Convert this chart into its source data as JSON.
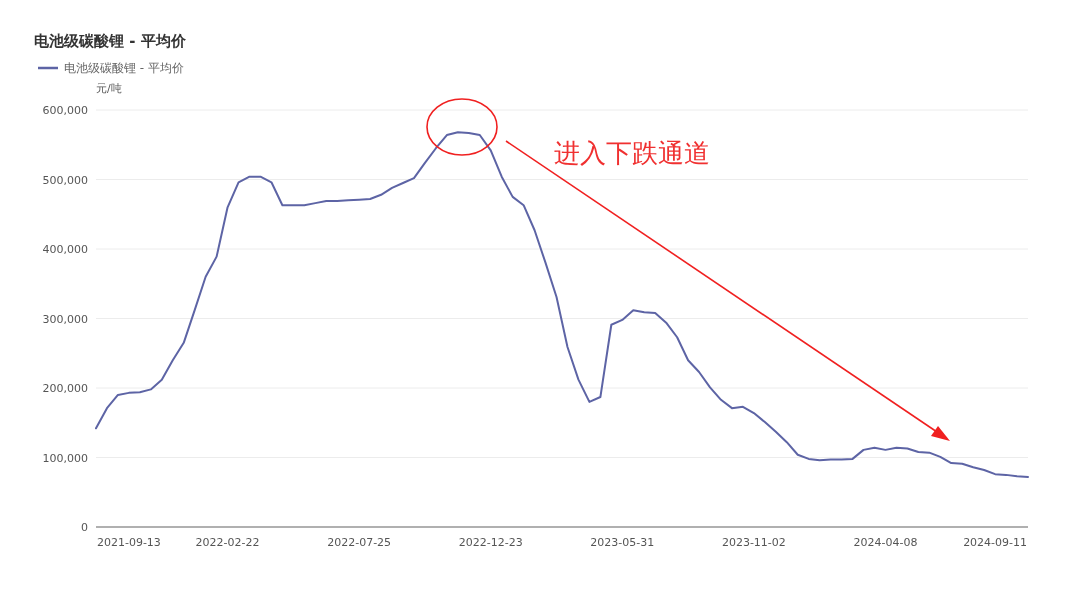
{
  "chart_data": {
    "type": "line",
    "title": "电池级碳酸锂 - 平均价",
    "ylabel": "元/吨",
    "legend": "top left",
    "grid": "y",
    "categories": [
      null,
      null,
      null,
      "2021-09-13",
      null,
      null,
      null,
      null,
      null,
      null,
      null,
      null,
      "2022-02-22",
      null,
      null,
      null,
      null,
      null,
      null,
      null,
      null,
      null,
      null,
      null,
      "2022-07-25",
      null,
      null,
      null,
      null,
      null,
      null,
      null,
      null,
      null,
      null,
      null,
      "2022-12-23",
      null,
      null,
      null,
      null,
      null,
      null,
      null,
      null,
      null,
      null,
      null,
      "2023-05-31",
      null,
      null,
      null,
      null,
      null,
      null,
      null,
      null,
      null,
      null,
      null,
      "2023-11-02",
      null,
      null,
      null,
      null,
      null,
      null,
      null,
      null,
      null,
      null,
      null,
      "2024-04-08",
      null,
      null,
      null,
      null,
      null,
      null,
      null,
      null,
      null,
      "2024-09-11",
      null,
      null,
      null
    ],
    "series": [
      {
        "name": "电池级碳酸锂 - 平均价",
        "color": "#5d64a5",
        "values": [
          142000,
          171000,
          190000,
          193000,
          194000,
          198000,
          212000,
          240000,
          265000,
          312000,
          360000,
          389000,
          460000,
          496000,
          504000,
          504000,
          496000,
          463000,
          463000,
          463000,
          466000,
          469000,
          469000,
          470000,
          471000,
          472000,
          478000,
          488000,
          495000,
          502000,
          524000,
          545000,
          564000,
          568000,
          567000,
          564000,
          542000,
          504000,
          475000,
          463000,
          427000,
          380000,
          331000,
          259000,
          212000,
          180000,
          187000,
          291000,
          298000,
          312000,
          309000,
          308000,
          294000,
          273000,
          240000,
          223000,
          201000,
          183000,
          171000,
          173000,
          164000,
          151000,
          137000,
          122000,
          104000,
          98000,
          96000,
          97000,
          97000,
          98000,
          111000,
          114000,
          111000,
          114000,
          113000,
          108000,
          107000,
          101000,
          92000,
          91000,
          86000,
          82000,
          76000,
          75000,
          73000,
          72000
        ]
      }
    ],
    "ylim": [
      0,
      600000
    ],
    "yticks": [
      0,
      {
        "value": 100000,
        "label": "100,000"
      },
      {
        "value": 200000,
        "label": "200,000"
      },
      {
        "value": 300000,
        "label": "300,000"
      },
      {
        "value": 400000,
        "label": "400,000"
      },
      {
        "value": 500000,
        "label": "500,000"
      },
      {
        "value": 600000,
        "label": "600,000"
      }
    ],
    "annotations": [
      "进入下跌通道"
    ]
  }
}
